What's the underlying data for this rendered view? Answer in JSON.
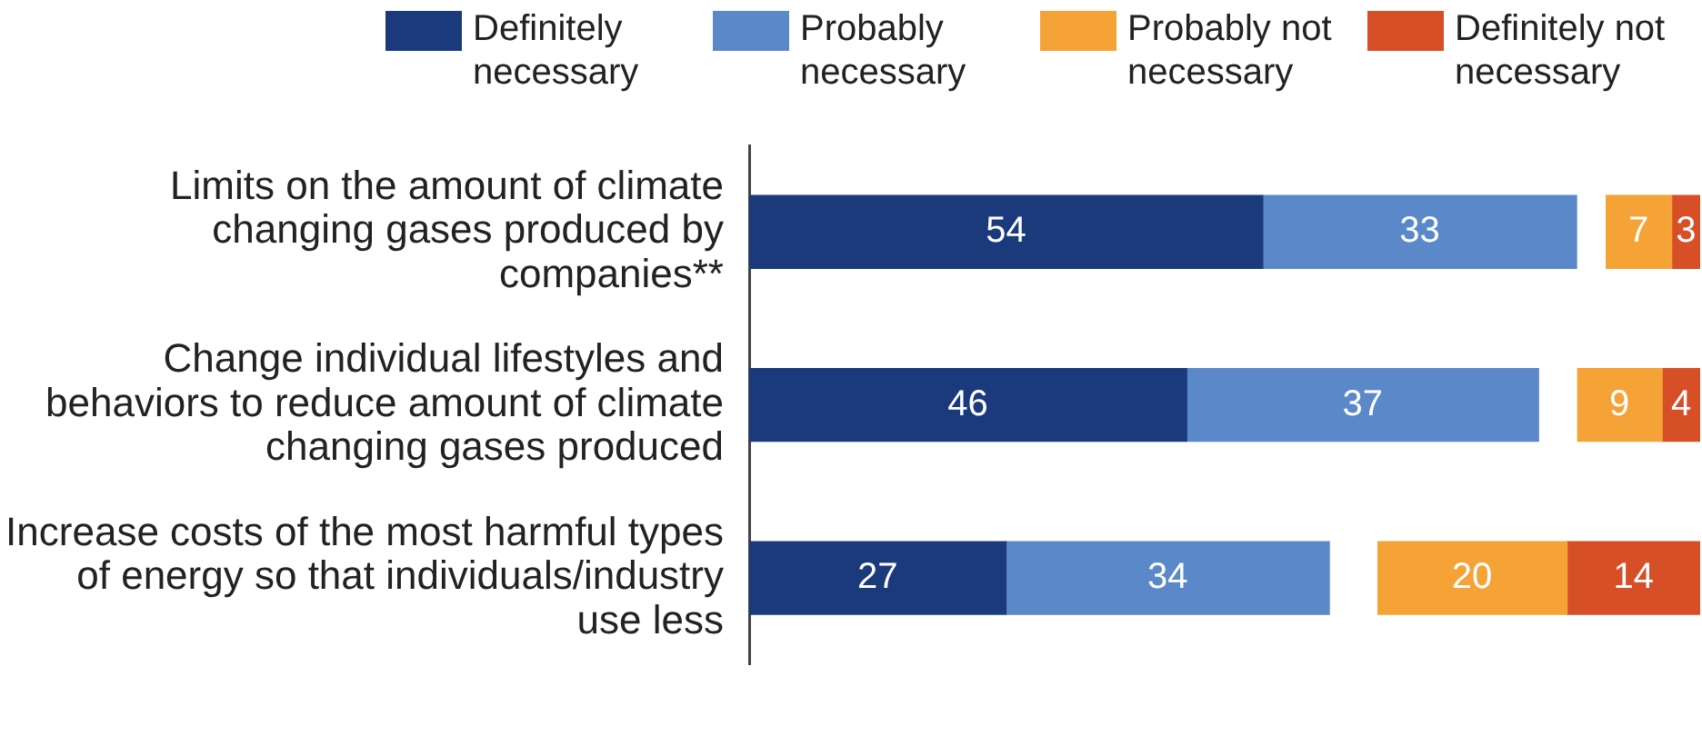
{
  "chart_data": {
    "type": "bar",
    "orientation": "horizontal",
    "stacked": true,
    "legend": "top",
    "categories": [
      "Limits on the amount of climate changing gases produced by companies**",
      "Change individual lifestyles and behaviors to reduce amount of climate changing gases produced",
      "Increase costs of the most harmful types of energy so that individuals/industry use less"
    ],
    "xlim": [
      0,
      100
    ],
    "series": [
      {
        "name": "Definitely necessary",
        "color": "#1b3a7c",
        "values": [
          54,
          46,
          27
        ],
        "value_labels": [
          "54",
          "46",
          "27"
        ]
      },
      {
        "name": "Probably necessary",
        "color": "#5b88c9",
        "values": [
          33,
          37,
          34
        ],
        "value_labels": [
          "33",
          "37",
          "34"
        ]
      },
      {
        "color": "#ffffff",
        "values": [
          3,
          4,
          5
        ],
        "value_labels": [
          null,
          null,
          null
        ]
      },
      {
        "name": "Probably not necessary",
        "color": "#f5a236",
        "values": [
          7,
          9,
          20
        ],
        "value_labels": [
          "7",
          "9",
          "20"
        ]
      },
      {
        "name": "Definitely not necessary",
        "color": "#d74f27",
        "values": [
          3,
          4,
          14
        ],
        "value_labels": [
          "3",
          "4",
          "14"
        ]
      }
    ]
  }
}
